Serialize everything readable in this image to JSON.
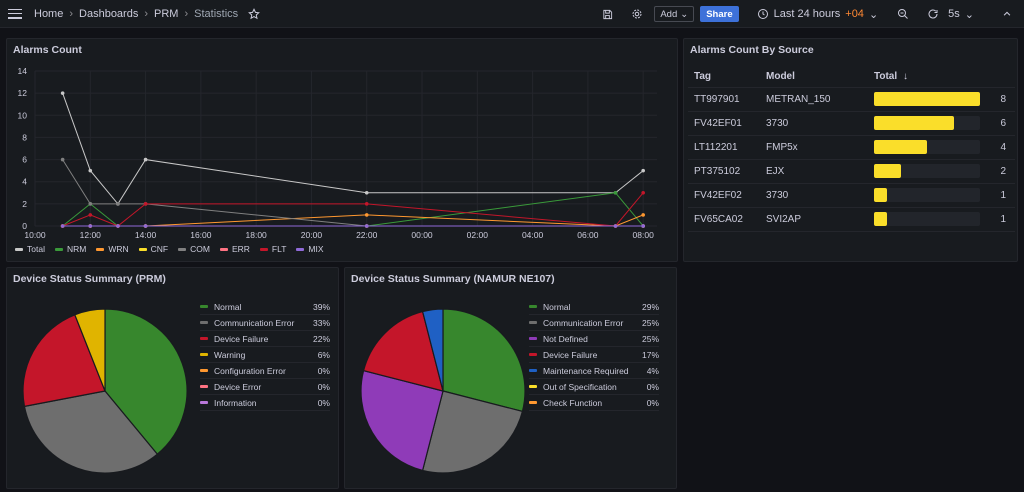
{
  "topbar": {
    "breadcrumbs": [
      "Home",
      "Dashboards",
      "PRM",
      "Statistics"
    ],
    "add_label": "Add",
    "share_label": "Share",
    "time_range": "Last 24 hours",
    "timezone": "+04",
    "refresh": "5s"
  },
  "alarms_panel": {
    "title": "Alarms Count",
    "chart_data": {
      "type": "line",
      "x": [
        "10:00",
        "12:00",
        "14:00",
        "16:00",
        "18:00",
        "20:00",
        "22:00",
        "00:00",
        "02:00",
        "04:00",
        "06:00",
        "08:00"
      ],
      "ylim": [
        0,
        14
      ],
      "yticks": [
        0,
        2,
        4,
        6,
        8,
        10,
        12,
        14
      ],
      "legend": "bottom",
      "series": [
        {
          "name": "Total",
          "color": "#c8c8c8",
          "points": [
            [
              11.0,
              12
            ],
            [
              12.0,
              5
            ],
            [
              13.0,
              2
            ],
            [
              14.0,
              6
            ],
            [
              22.0,
              3
            ],
            [
              31.0,
              3
            ],
            [
              32.0,
              5
            ]
          ]
        },
        {
          "name": "NRM",
          "color": "#3a9a3a",
          "points": [
            [
              11.0,
              0
            ],
            [
              12.0,
              2
            ],
            [
              13.0,
              0
            ],
            [
              14.0,
              0
            ],
            [
              22.0,
              0
            ],
            [
              31.0,
              3
            ],
            [
              32.0,
              0
            ]
          ]
        },
        {
          "name": "WRN",
          "color": "#ff9830",
          "points": [
            [
              11.0,
              0
            ],
            [
              12.0,
              0
            ],
            [
              13.0,
              0
            ],
            [
              14.0,
              0
            ],
            [
              22.0,
              1
            ],
            [
              31.0,
              0
            ],
            [
              32.0,
              1
            ]
          ]
        },
        {
          "name": "CNF",
          "color": "#fade2a",
          "points": [
            [
              11.0,
              0
            ],
            [
              12.0,
              0
            ],
            [
              13.0,
              0
            ],
            [
              14.0,
              0
            ],
            [
              22.0,
              0
            ],
            [
              31.0,
              0
            ],
            [
              32.0,
              0
            ]
          ]
        },
        {
          "name": "COM",
          "color": "#808080",
          "points": [
            [
              11.0,
              6
            ],
            [
              12.0,
              2
            ],
            [
              13.0,
              2
            ],
            [
              14.0,
              2
            ],
            [
              22.0,
              0
            ],
            [
              31.0,
              0
            ],
            [
              32.0,
              0
            ]
          ]
        },
        {
          "name": "ERR",
          "color": "#ff7383",
          "points": [
            [
              11.0,
              0
            ],
            [
              12.0,
              0
            ],
            [
              13.0,
              0
            ],
            [
              14.0,
              0
            ],
            [
              22.0,
              0
            ],
            [
              31.0,
              0
            ],
            [
              32.0,
              0
            ]
          ]
        },
        {
          "name": "FLT",
          "color": "#c4162a",
          "points": [
            [
              11.0,
              0
            ],
            [
              12.0,
              1
            ],
            [
              13.0,
              0
            ],
            [
              14.0,
              2
            ],
            [
              22.0,
              2
            ],
            [
              31.0,
              0
            ],
            [
              32.0,
              3
            ]
          ]
        },
        {
          "name": "MIX",
          "color": "#8f6ad8",
          "points": [
            [
              11.0,
              0
            ],
            [
              12.0,
              0
            ],
            [
              13.0,
              0
            ],
            [
              14.0,
              0
            ],
            [
              22.0,
              0
            ],
            [
              31.0,
              0
            ],
            [
              32.0,
              0
            ]
          ]
        }
      ]
    }
  },
  "source_panel": {
    "title": "Alarms Count By Source",
    "columns": [
      "Tag",
      "Model",
      "Total"
    ],
    "rows": [
      {
        "tag": "TT997901",
        "model": "METRAN_150",
        "total": "8",
        "value": 8
      },
      {
        "tag": "FV42EF01",
        "model": "3730",
        "total": "6",
        "value": 6
      },
      {
        "tag": "LT112201",
        "model": "FMP5x",
        "total": "4",
        "value": 4
      },
      {
        "tag": "PT375102",
        "model": "EJX",
        "total": "2",
        "value": 2
      },
      {
        "tag": "FV42EF02",
        "model": "3730",
        "total": "1",
        "value": 1
      },
      {
        "tag": "FV65CA02",
        "model": "SVI2AP",
        "total": "1",
        "value": 1
      }
    ]
  },
  "prm_panel": {
    "title": "Device Status Summary (PRM)",
    "chart_data": {
      "type": "pie",
      "slices": [
        {
          "label": "Normal",
          "pct": "39%",
          "value": 39,
          "color": "#37872d"
        },
        {
          "label": "Communication Error",
          "pct": "33%",
          "value": 33,
          "color": "#6e6e6e"
        },
        {
          "label": "Device Failure",
          "pct": "22%",
          "value": 22,
          "color": "#c4162a"
        },
        {
          "label": "Warning",
          "pct": "6%",
          "value": 6,
          "color": "#e0b400"
        },
        {
          "label": "Configuration Error",
          "pct": "0%",
          "value": 0,
          "color": "#ff9830"
        },
        {
          "label": "Device Error",
          "pct": "0%",
          "value": 0,
          "color": "#ff7383"
        },
        {
          "label": "Information",
          "pct": "0%",
          "value": 0,
          "color": "#b877d9"
        }
      ]
    }
  },
  "namur_panel": {
    "title": "Device Status Summary (NAMUR NE107)",
    "chart_data": {
      "type": "pie",
      "slices": [
        {
          "label": "Normal",
          "pct": "29%",
          "value": 29,
          "color": "#37872d"
        },
        {
          "label": "Communication Error",
          "pct": "25%",
          "value": 25,
          "color": "#6e6e6e"
        },
        {
          "label": "Not Defined",
          "pct": "25%",
          "value": 25,
          "color": "#8f3bb8"
        },
        {
          "label": "Device Failure",
          "pct": "17%",
          "value": 17,
          "color": "#c4162a"
        },
        {
          "label": "Maintenance Required",
          "pct": "4%",
          "value": 4,
          "color": "#1f60c4"
        },
        {
          "label": "Out of Specification",
          "pct": "0%",
          "value": 0,
          "color": "#fade2a"
        },
        {
          "label": "Check Function",
          "pct": "0%",
          "value": 0,
          "color": "#ff9830"
        }
      ]
    }
  }
}
